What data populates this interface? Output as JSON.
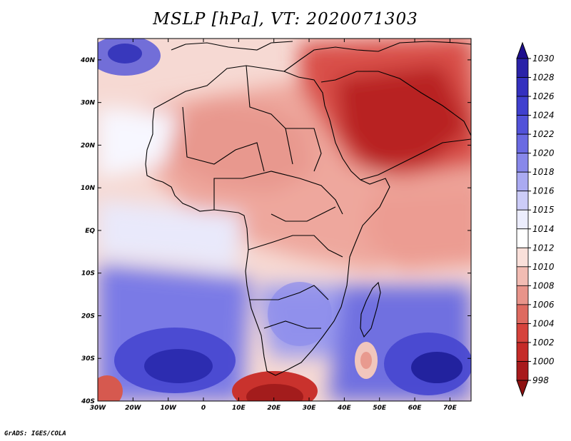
{
  "title": "MSLP [hPa], VT: 2020071303",
  "footer": "GrADS: IGES/COLA",
  "map": {
    "lon_range": [
      -30,
      76
    ],
    "lat_range": [
      -40,
      45
    ],
    "x_ticks": [
      "30W",
      "20W",
      "10W",
      "0",
      "10E",
      "20E",
      "30E",
      "40E",
      "50E",
      "60E",
      "70E"
    ],
    "x_tick_values": [
      -30,
      -20,
      -10,
      0,
      10,
      20,
      30,
      40,
      50,
      60,
      70
    ],
    "y_ticks": [
      "40N",
      "30N",
      "20N",
      "10N",
      "EQ",
      "10S",
      "20S",
      "30S",
      "40S"
    ],
    "y_tick_values": [
      40,
      30,
      20,
      10,
      0,
      -10,
      -20,
      -30,
      -40
    ]
  },
  "colorbar": {
    "labels": [
      "1030",
      "1028",
      "1026",
      "1024",
      "1022",
      "1020",
      "1018",
      "1016",
      "1015",
      "1014",
      "1012",
      "1010",
      "1008",
      "1006",
      "1004",
      "1002",
      "1000",
      "998"
    ],
    "colors": [
      "#1e0f8e",
      "#2a22a8",
      "#3430bf",
      "#4040cf",
      "#5252d9",
      "#6a6ae2",
      "#8888ea",
      "#aaaaf2",
      "#ccccf8",
      "#ecedfd",
      "#ffffff",
      "#fae0da",
      "#f2bcb3",
      "#e8948a",
      "#de6a60",
      "#d6433c",
      "#c52b28",
      "#a81a1c",
      "#8e1010"
    ]
  }
}
